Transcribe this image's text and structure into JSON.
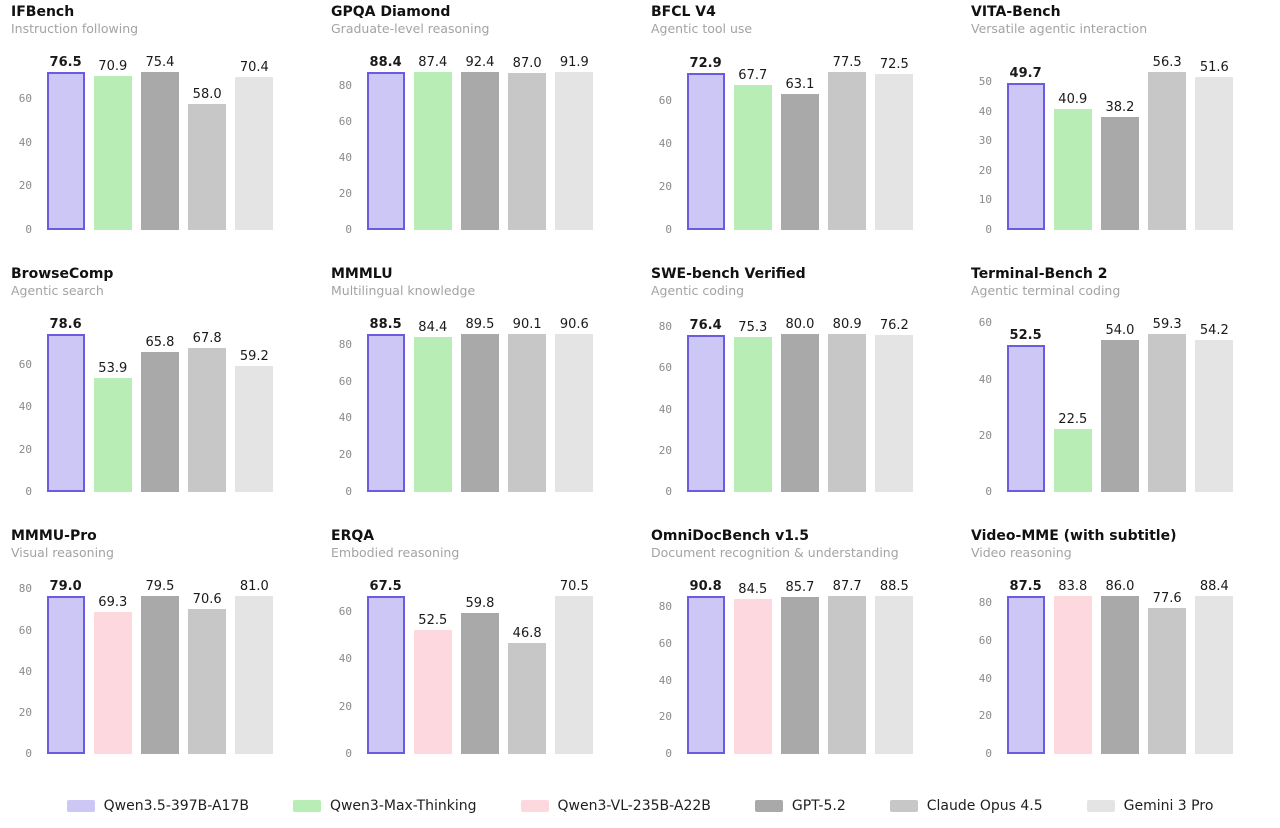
{
  "palette": {
    "Qwen3.5-397B-A17B": {
      "fill": "#cdc7f5",
      "edge": "#6b5be0",
      "bold_label": true
    },
    "Qwen3-Max-Thinking": {
      "fill": "#b8edb5",
      "edge": null,
      "bold_label": false
    },
    "Qwen3-VL-235B-A22B": {
      "fill": "#fdd8de",
      "edge": null,
      "bold_label": false
    },
    "GPT-5.2": {
      "fill": "#a9a9a9",
      "edge": null,
      "bold_label": false
    },
    "Claude Opus 4.5": {
      "fill": "#c7c7c7",
      "edge": null,
      "bold_label": false
    },
    "Gemini 3 Pro": {
      "fill": "#e4e4e4",
      "edge": null,
      "bold_label": false
    }
  },
  "legend": {
    "entries": [
      "Qwen3.5-397B-A17B",
      "Qwen3-Max-Thinking",
      "Qwen3-VL-235B-A22B",
      "GPT-5.2",
      "Claude Opus 4.5",
      "Gemini 3 Pro"
    ]
  },
  "chart_data": [
    {
      "type": "bar",
      "title": "IFBench",
      "subtitle": "Instruction following",
      "categories": [
        "Qwen3.5-397B-A17B",
        "Qwen3-Max-Thinking",
        "GPT-5.2",
        "Claude Opus 4.5",
        "Gemini 3 Pro"
      ],
      "values": [
        76.5,
        70.9,
        75.4,
        58.0,
        70.4
      ],
      "yticks": [
        0,
        20,
        40,
        60
      ],
      "ylim": [
        0,
        80.3
      ],
      "grid": false
    },
    {
      "type": "bar",
      "title": "GPQA Diamond",
      "subtitle": "Graduate-level reasoning",
      "categories": [
        "Qwen3.5-397B-A17B",
        "Qwen3-Max-Thinking",
        "GPT-5.2",
        "Claude Opus 4.5",
        "Gemini 3 Pro"
      ],
      "values": [
        88.4,
        87.4,
        92.4,
        87.0,
        91.9
      ],
      "yticks": [
        0,
        20,
        40,
        60,
        80
      ],
      "ylim": [
        0,
        97.0
      ],
      "grid": false
    },
    {
      "type": "bar",
      "title": "BFCL V4",
      "subtitle": "Agentic tool use",
      "categories": [
        "Qwen3.5-397B-A17B",
        "Qwen3-Max-Thinking",
        "GPT-5.2",
        "Claude Opus 4.5",
        "Gemini 3 Pro"
      ],
      "values": [
        72.9,
        67.7,
        63.1,
        77.5,
        72.5
      ],
      "yticks": [
        0,
        20,
        40,
        60
      ],
      "ylim": [
        0,
        81.4
      ],
      "grid": false
    },
    {
      "type": "bar",
      "title": "VITA-Bench",
      "subtitle": "Versatile agentic interaction",
      "categories": [
        "Qwen3.5-397B-A17B",
        "Qwen3-Max-Thinking",
        "GPT-5.2",
        "Claude Opus 4.5",
        "Gemini 3 Pro"
      ],
      "values": [
        49.7,
        40.9,
        38.2,
        56.3,
        51.6
      ],
      "yticks": [
        0,
        10,
        20,
        30,
        40,
        50
      ],
      "ylim": [
        0,
        59.1
      ],
      "grid": false
    },
    {
      "type": "bar",
      "title": "BrowseComp",
      "subtitle": "Agentic search",
      "categories": [
        "Qwen3.5-397B-A17B",
        "Qwen3-Max-Thinking",
        "GPT-5.2",
        "Claude Opus 4.5",
        "Gemini 3 Pro"
      ],
      "values": [
        78.6,
        53.9,
        65.8,
        67.8,
        59.2
      ],
      "yticks": [
        0,
        20,
        40,
        60
      ],
      "ylim": [
        0,
        82.5
      ],
      "grid": false
    },
    {
      "type": "bar",
      "title": "MMMLU",
      "subtitle": "Multilingual knowledge",
      "categories": [
        "Qwen3.5-397B-A17B",
        "Qwen3-Max-Thinking",
        "GPT-5.2",
        "Claude Opus 4.5",
        "Gemini 3 Pro"
      ],
      "values": [
        88.5,
        84.4,
        89.5,
        90.1,
        90.6
      ],
      "yticks": [
        0,
        20,
        40,
        60,
        80
      ],
      "ylim": [
        0,
        95.1
      ],
      "grid": false
    },
    {
      "type": "bar",
      "title": "SWE-bench Verified",
      "subtitle": "Agentic coding",
      "categories": [
        "Qwen3.5-397B-A17B",
        "Qwen3-Max-Thinking",
        "GPT-5.2",
        "Claude Opus 4.5",
        "Gemini 3 Pro"
      ],
      "values": [
        76.4,
        75.3,
        80.0,
        80.9,
        76.2
      ],
      "yticks": [
        0,
        20,
        40,
        60,
        80
      ],
      "ylim": [
        0,
        84.9
      ],
      "grid": false
    },
    {
      "type": "bar",
      "title": "Terminal-Bench 2",
      "subtitle": "Agentic terminal coding",
      "categories": [
        "Qwen3.5-397B-A17B",
        "Qwen3-Max-Thinking",
        "GPT-5.2",
        "Claude Opus 4.5",
        "Gemini 3 Pro"
      ],
      "values": [
        52.5,
        22.5,
        54.0,
        59.3,
        54.2
      ],
      "yticks": [
        0,
        20,
        40,
        60
      ],
      "ylim": [
        0,
        62.3
      ],
      "grid": false
    },
    {
      "type": "bar",
      "title": "MMMU-Pro",
      "subtitle": "Visual reasoning",
      "categories": [
        "Qwen3.5-397B-A17B",
        "Qwen3-VL-235B-A22B",
        "GPT-5.2",
        "Claude Opus 4.5",
        "Gemini 3 Pro"
      ],
      "values": [
        79.0,
        69.3,
        79.5,
        70.6,
        81.0
      ],
      "yticks": [
        0,
        20,
        40,
        60,
        80
      ],
      "ylim": [
        0,
        85.1
      ],
      "grid": false
    },
    {
      "type": "bar",
      "title": "ERQA",
      "subtitle": "Embodied reasoning",
      "categories": [
        "Qwen3.5-397B-A17B",
        "Qwen3-VL-235B-A22B",
        "GPT-5.2",
        "Claude Opus 4.5",
        "Gemini 3 Pro"
      ],
      "values": [
        67.5,
        52.5,
        59.8,
        46.8,
        70.5
      ],
      "yticks": [
        0,
        20,
        40,
        60
      ],
      "ylim": [
        0,
        74.0
      ],
      "grid": false
    },
    {
      "type": "bar",
      "title": "OmniDocBench v1.5",
      "subtitle": "Document recognition & understanding",
      "categories": [
        "Qwen3.5-397B-A17B",
        "Qwen3-VL-235B-A22B",
        "GPT-5.2",
        "Claude Opus 4.5",
        "Gemini 3 Pro"
      ],
      "values": [
        90.8,
        84.5,
        85.7,
        87.7,
        88.5
      ],
      "yticks": [
        0,
        20,
        40,
        60,
        80
      ],
      "ylim": [
        0,
        95.3
      ],
      "grid": false
    },
    {
      "type": "bar",
      "title": "Video-MME (with subtitle)",
      "subtitle": "Video reasoning",
      "categories": [
        "Qwen3.5-397B-A17B",
        "Qwen3-VL-235B-A22B",
        "GPT-5.2",
        "Claude Opus 4.5",
        "Gemini 3 Pro"
      ],
      "values": [
        87.5,
        83.8,
        86.0,
        77.6,
        88.4
      ],
      "yticks": [
        0,
        20,
        40,
        60,
        80
      ],
      "ylim": [
        0,
        92.8
      ],
      "grid": false
    }
  ]
}
